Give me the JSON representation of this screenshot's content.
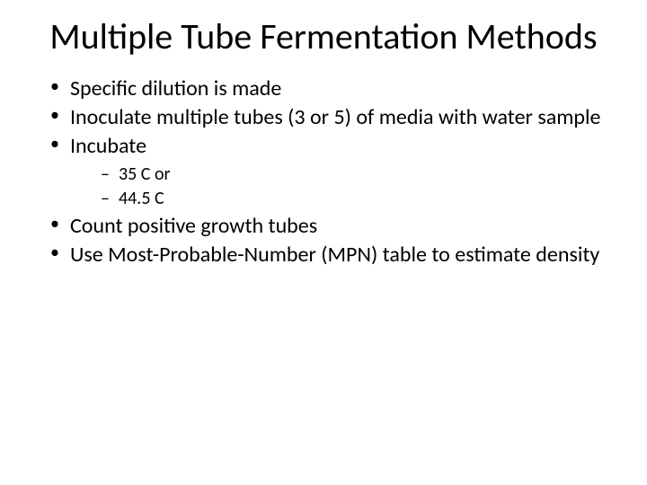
{
  "slide": {
    "title": "Multiple Tube Fermentation Methods",
    "bullets": [
      {
        "text": "Specific dilution is made"
      },
      {
        "text": "Inoculate multiple tubes (3 or 5) of media with water sample"
      },
      {
        "text": "Incubate",
        "sub": [
          {
            "text": "35 C or"
          },
          {
            "text": "44.5 C"
          }
        ]
      },
      {
        "text": "Count positive growth tubes"
      },
      {
        "text": "Use Most-Probable-Number (MPN) table to estimate density"
      }
    ]
  },
  "style": {
    "background_color": "#ffffff",
    "text_color": "#000000",
    "title_fontsize": 40,
    "bullet_fontsize": 24,
    "sub_fontsize": 20,
    "font_family": "Calibri"
  }
}
